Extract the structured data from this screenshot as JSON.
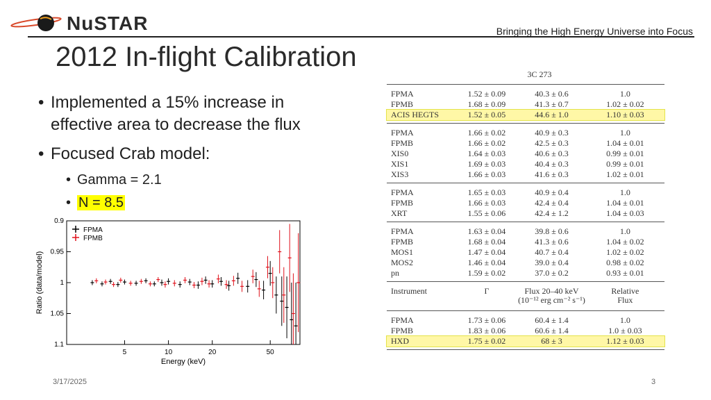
{
  "header": {
    "logo_text": "NuSTAR",
    "tagline": "Bringing the High Energy Universe into Focus"
  },
  "slide": {
    "title": "2012 In-flight Calibration",
    "bullets": [
      {
        "text": "Implemented a 15% increase in effective area to decrease the flux"
      },
      {
        "text": "Focused Crab model:",
        "sub": [
          "Gamma = 2.1",
          "N = 8.5"
        ]
      }
    ]
  },
  "table": {
    "source": "3C 273",
    "groups": [
      [
        [
          "FPMA",
          "1.52 ± 0.09",
          "40.3 ± 0.6",
          "1.0"
        ],
        [
          "FPMB",
          "1.68 ± 0.09",
          "41.3 ± 0.7",
          "1.02 ± 0.02"
        ],
        [
          "ACIS HEGTS",
          "1.52 ± 0.05",
          "44.6 ± 1.0",
          "1.10 ± 0.03"
        ]
      ],
      [
        [
          "FPMA",
          "1.66 ± 0.02",
          "40.9 ± 0.3",
          "1.0"
        ],
        [
          "FPMB",
          "1.66 ± 0.02",
          "42.5 ± 0.3",
          "1.04 ± 0.01"
        ],
        [
          "XIS0",
          "1.64 ± 0.03",
          "40.6 ± 0.3",
          "0.99 ± 0.01"
        ],
        [
          "XIS1",
          "1.69 ± 0.03",
          "40.4 ± 0.3",
          "0.99 ± 0.01"
        ],
        [
          "XIS3",
          "1.66 ± 0.03",
          "41.6 ± 0.3",
          "1.02 ± 0.01"
        ]
      ],
      [
        [
          "FPMA",
          "1.65 ± 0.03",
          "40.9 ± 0.4",
          "1.0"
        ],
        [
          "FPMB",
          "1.66 ± 0.03",
          "42.4 ± 0.4",
          "1.04 ± 0.01"
        ],
        [
          "XRT",
          "1.55 ± 0.06",
          "42.4 ± 1.2",
          "1.04 ± 0.03"
        ]
      ],
      [
        [
          "FPMA",
          "1.63 ± 0.04",
          "39.8 ± 0.6",
          "1.0"
        ],
        [
          "FPMB",
          "1.68 ± 0.04",
          "41.3 ± 0.6",
          "1.04 ± 0.02"
        ],
        [
          "MOS1",
          "1.47 ± 0.04",
          "40.7 ± 0.4",
          "1.02 ± 0.02"
        ],
        [
          "MOS2",
          "1.46 ± 0.04",
          "39.0 ± 0.4",
          "0.98 ± 0.02"
        ],
        [
          "pn",
          "1.59 ± 0.02",
          "37.0 ± 0.2",
          "0.93 ± 0.01"
        ]
      ]
    ],
    "col_headers": {
      "instrument": "Instrument",
      "gamma": "Γ",
      "flux_line1": "Flux 20–40 keV",
      "flux_line2": "(10⁻¹² erg cm⁻² s⁻¹)",
      "rel_line1": "Relative",
      "rel_line2": "Flux"
    },
    "last_group": [
      [
        "FPMA",
        "1.73 ± 0.06",
        "60.4 ± 1.4",
        "1.0"
      ],
      [
        "FPMB",
        "1.83 ± 0.06",
        "60.6 ± 1.4",
        "1.0 ± 0.03"
      ],
      [
        "HXD",
        "1.75 ± 0.02",
        "68 ± 3",
        "1.12 ± 0.03"
      ]
    ],
    "highlight_color": "#fff7a6"
  },
  "chart_data": {
    "type": "scatter",
    "title": "",
    "xlabel": "Energy (keV)",
    "ylabel": "Ratio (data/model)",
    "x_scale": "log",
    "xlim": [
      2,
      80
    ],
    "ylim": [
      0.9,
      1.1
    ],
    "y_inverted": true,
    "x_ticks": [
      5,
      10,
      20,
      50
    ],
    "y_ticks": [
      0.9,
      0.95,
      1,
      1.05,
      1.1
    ],
    "legend": [
      "FPMA",
      "FPMB"
    ],
    "legend_position": "top-left",
    "series": [
      {
        "name": "FPMA",
        "color": "#000000",
        "x": [
          3,
          3.5,
          4,
          4.5,
          5,
          6,
          7,
          8,
          9,
          10,
          12,
          14,
          16,
          18,
          20,
          23,
          26,
          30,
          35,
          40,
          45,
          50,
          55,
          60,
          65,
          70,
          75
        ],
        "y": [
          1.0,
          1.002,
          0.998,
          1.003,
          0.999,
          1.001,
          0.997,
          1.002,
          1.0,
          0.998,
          1.003,
          0.999,
          1.004,
          0.996,
          1.002,
          0.998,
          1.005,
          0.993,
          1.006,
          0.995,
          1.012,
          0.985,
          1.02,
          1.03,
          1.04,
          1.06,
          1.07
        ],
        "err": [
          0.004,
          0.004,
          0.004,
          0.004,
          0.004,
          0.004,
          0.004,
          0.004,
          0.005,
          0.005,
          0.005,
          0.005,
          0.006,
          0.006,
          0.006,
          0.007,
          0.008,
          0.009,
          0.01,
          0.012,
          0.015,
          0.02,
          0.03,
          0.04,
          0.05,
          0.06,
          0.07
        ]
      },
      {
        "name": "FPMB",
        "color": "#e0101a",
        "x": [
          3.2,
          3.7,
          4.2,
          4.7,
          5.5,
          6.5,
          7.5,
          8.5,
          9.5,
          11,
          13,
          15,
          17,
          19,
          22,
          25,
          28,
          32,
          38,
          42,
          48,
          52,
          58,
          62,
          68,
          72,
          78
        ],
        "y": [
          0.997,
          0.999,
          1.003,
          0.996,
          1.001,
          0.998,
          1.002,
          0.995,
          1.003,
          1.001,
          0.996,
          1.004,
          0.998,
          1.002,
          0.994,
          1.003,
          0.997,
          1.006,
          0.99,
          1.01,
          0.975,
          1.0,
          0.95,
          1.02,
          0.96,
          1.05,
          1.0
        ],
        "err": [
          0.004,
          0.004,
          0.004,
          0.004,
          0.004,
          0.004,
          0.004,
          0.004,
          0.005,
          0.005,
          0.005,
          0.005,
          0.006,
          0.006,
          0.007,
          0.007,
          0.008,
          0.009,
          0.011,
          0.013,
          0.018,
          0.025,
          0.035,
          0.045,
          0.055,
          0.065,
          0.08
        ]
      }
    ]
  },
  "footer": {
    "date": "3/17/2025",
    "page": "3"
  }
}
